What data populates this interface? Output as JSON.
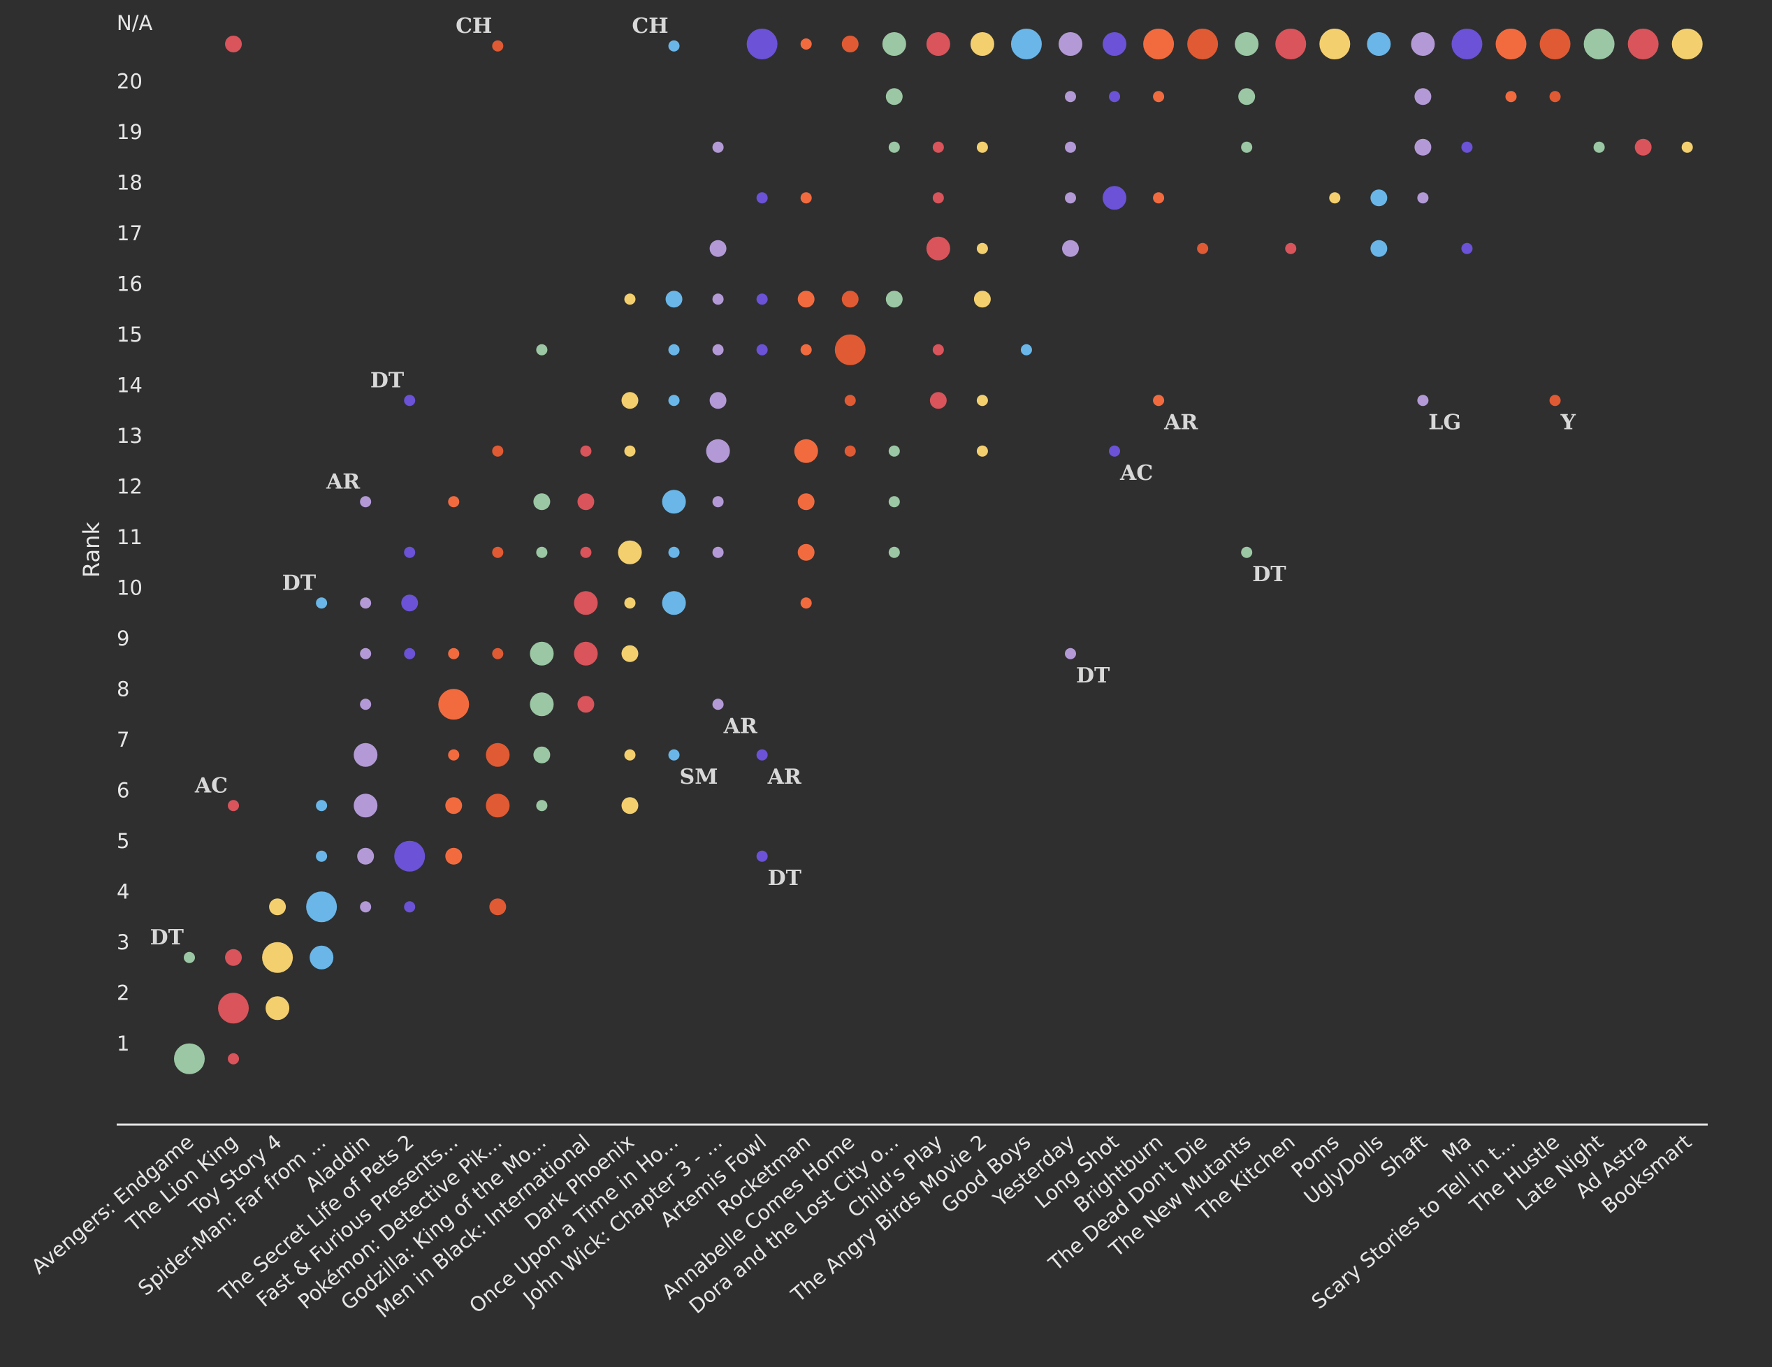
{
  "chart_data": {
    "type": "scatter",
    "ylabel": "Rank",
    "y_ticks": [
      "1",
      "2",
      "3",
      "4",
      "5",
      "6",
      "7",
      "8",
      "9",
      "10",
      "11",
      "12",
      "13",
      "14",
      "15",
      "16",
      "17",
      "18",
      "19",
      "20",
      "N/A"
    ],
    "categories": [
      "Avengers: Endgame",
      "The Lion King",
      "Toy Story 4",
      "Spider-Man: Far from ...",
      "Aladdin",
      "The Secret Life of Pets 2",
      "Fast & Furious Presents...",
      "Pokémon: Detective Pik...",
      "Godzilla: King of the Mo...",
      "Men in Black: International",
      "Dark Phoenix",
      "Once Upon a Time in Ho...",
      "John Wick: Chapter 3 - ...",
      "Artemis Fowl",
      "Rocketman",
      "Annabelle Comes Home",
      "Dora and the Lost City o...",
      "Child's Play",
      "The Angry Birds Movie 2",
      "Good Boys",
      "Yesterday",
      "Long Shot",
      "Brightburn",
      "The Dead Don't Die",
      "The New Mutants",
      "The Kitchen",
      "Poms",
      "UglyDolls",
      "Shaft",
      "Ma",
      "Scary Stories to Tell in t...",
      "The Hustle",
      "Late Night",
      "Ad Astra",
      "Booksmart"
    ],
    "palette": [
      "#9bc7a4",
      "#d9545b",
      "#f4cf6e",
      "#6ab6e8",
      "#b39ad6",
      "#6b52d6",
      "#f26b3f",
      "#e05a33"
    ],
    "size_scale": [
      1,
      2,
      3,
      4
    ],
    "points": [
      [
        0,
        0.7,
        4,
        0
      ],
      [
        0,
        2.7,
        1,
        0
      ],
      [
        1,
        0.7,
        1,
        1
      ],
      [
        1,
        1.7,
        4,
        1
      ],
      [
        1,
        2.7,
        2,
        1
      ],
      [
        1,
        5.7,
        1,
        1
      ],
      [
        1,
        21,
        2,
        1
      ],
      [
        2,
        1.7,
        3,
        2
      ],
      [
        2,
        2.7,
        4,
        2
      ],
      [
        2,
        3.7,
        2,
        2
      ],
      [
        3,
        2.7,
        3,
        3
      ],
      [
        3,
        3.7,
        4,
        3
      ],
      [
        3,
        4.7,
        1,
        3
      ],
      [
        3,
        5.7,
        1,
        3
      ],
      [
        3,
        9.7,
        1,
        3
      ],
      [
        4,
        3.7,
        1,
        4
      ],
      [
        4,
        4.7,
        2,
        4
      ],
      [
        4,
        5.7,
        3,
        4
      ],
      [
        4,
        6.7,
        3,
        4
      ],
      [
        4,
        7.7,
        1,
        4
      ],
      [
        4,
        8.7,
        1,
        4
      ],
      [
        4,
        9.7,
        1,
        4
      ],
      [
        4,
        11.7,
        1,
        4
      ],
      [
        5,
        3.7,
        1,
        5
      ],
      [
        5,
        4.7,
        4,
        5
      ],
      [
        5,
        8.7,
        1,
        5
      ],
      [
        5,
        9.7,
        2,
        5
      ],
      [
        5,
        10.7,
        1,
        5
      ],
      [
        5,
        13.7,
        1,
        5
      ],
      [
        6,
        4.7,
        2,
        6
      ],
      [
        6,
        5.7,
        2,
        6
      ],
      [
        6,
        6.7,
        1,
        6
      ],
      [
        6,
        7.7,
        4,
        6
      ],
      [
        6,
        8.7,
        1,
        6
      ],
      [
        6,
        11.7,
        1,
        6
      ],
      [
        7,
        3.7,
        2,
        7
      ],
      [
        7,
        5.7,
        3,
        7
      ],
      [
        7,
        6.7,
        3,
        7
      ],
      [
        7,
        8.7,
        1,
        7
      ],
      [
        7,
        10.7,
        1,
        7
      ],
      [
        7,
        12.7,
        1,
        7
      ],
      [
        7,
        20.7,
        1,
        7
      ],
      [
        8,
        5.7,
        1,
        0
      ],
      [
        8,
        6.7,
        2,
        0
      ],
      [
        8,
        7.7,
        3,
        0
      ],
      [
        8,
        8.7,
        3,
        0
      ],
      [
        8,
        10.7,
        1,
        0
      ],
      [
        8,
        11.7,
        2,
        0
      ],
      [
        8,
        14.7,
        1,
        0
      ],
      [
        9,
        7.7,
        2,
        1
      ],
      [
        9,
        8.7,
        3,
        1
      ],
      [
        9,
        9.7,
        3,
        1
      ],
      [
        9,
        10.7,
        1,
        1
      ],
      [
        9,
        11.7,
        2,
        1
      ],
      [
        9,
        12.7,
        1,
        1
      ],
      [
        10,
        5.7,
        2,
        2
      ],
      [
        10,
        6.7,
        1,
        2
      ],
      [
        10,
        8.7,
        2,
        2
      ],
      [
        10,
        9.7,
        1,
        2
      ],
      [
        10,
        10.7,
        3,
        2
      ],
      [
        10,
        12.7,
        1,
        2
      ],
      [
        10,
        13.7,
        2,
        2
      ],
      [
        10,
        15.7,
        1,
        2
      ],
      [
        11,
        6.7,
        1,
        3
      ],
      [
        11,
        9.7,
        3,
        3
      ],
      [
        11,
        10.7,
        1,
        3
      ],
      [
        11,
        11.7,
        3,
        3
      ],
      [
        11,
        13.7,
        1,
        3
      ],
      [
        11,
        14.7,
        1,
        3
      ],
      [
        11,
        15.7,
        2,
        3
      ],
      [
        11,
        20.7,
        1,
        3
      ],
      [
        12,
        7.7,
        1,
        4
      ],
      [
        12,
        10.7,
        1,
        4
      ],
      [
        12,
        11.7,
        1,
        4
      ],
      [
        12,
        12.7,
        3,
        4
      ],
      [
        12,
        13.7,
        2,
        4
      ],
      [
        12,
        14.7,
        1,
        4
      ],
      [
        12,
        15.7,
        1,
        4
      ],
      [
        12,
        16.7,
        2,
        4
      ],
      [
        12,
        18.7,
        1,
        4
      ],
      [
        13,
        4.7,
        1,
        5
      ],
      [
        13,
        6.7,
        1,
        5
      ],
      [
        13,
        14.7,
        1,
        5
      ],
      [
        13,
        15.7,
        1,
        5
      ],
      [
        13,
        17.7,
        1,
        5
      ],
      [
        13,
        21,
        4,
        5
      ],
      [
        14,
        9.7,
        1,
        6
      ],
      [
        14,
        10.7,
        2,
        6
      ],
      [
        14,
        11.7,
        2,
        6
      ],
      [
        14,
        12.7,
        3,
        6
      ],
      [
        14,
        14.7,
        1,
        6
      ],
      [
        14,
        15.7,
        2,
        6
      ],
      [
        14,
        17.7,
        1,
        6
      ],
      [
        14,
        21,
        1,
        6
      ],
      [
        15,
        12.7,
        1,
        7
      ],
      [
        15,
        13.7,
        1,
        7
      ],
      [
        15,
        14.7,
        4,
        7
      ],
      [
        15,
        15.7,
        2,
        7
      ],
      [
        15,
        21,
        2,
        7
      ],
      [
        16,
        10.7,
        1,
        0
      ],
      [
        16,
        11.7,
        1,
        0
      ],
      [
        16,
        12.7,
        1,
        0
      ],
      [
        16,
        15.7,
        2,
        0
      ],
      [
        16,
        18.7,
        1,
        0
      ],
      [
        16,
        19.7,
        2,
        0
      ],
      [
        16,
        21,
        3,
        0
      ],
      [
        17,
        13.7,
        2,
        1
      ],
      [
        17,
        14.7,
        1,
        1
      ],
      [
        17,
        16.7,
        3,
        1
      ],
      [
        17,
        17.7,
        1,
        1
      ],
      [
        17,
        18.7,
        1,
        1
      ],
      [
        17,
        21,
        3,
        1
      ],
      [
        18,
        12.7,
        1,
        2
      ],
      [
        18,
        13.7,
        1,
        2
      ],
      [
        18,
        15.7,
        2,
        2
      ],
      [
        18,
        16.7,
        1,
        2
      ],
      [
        18,
        18.7,
        1,
        2
      ],
      [
        18,
        21,
        3,
        2
      ],
      [
        19,
        14.7,
        1,
        3
      ],
      [
        19,
        21,
        4,
        3
      ],
      [
        20,
        8.7,
        1,
        4
      ],
      [
        20,
        16.7,
        2,
        4
      ],
      [
        20,
        17.7,
        1,
        4
      ],
      [
        20,
        18.7,
        1,
        4
      ],
      [
        20,
        19.7,
        1,
        4
      ],
      [
        20,
        21,
        3,
        4
      ],
      [
        21,
        12.7,
        1,
        5
      ],
      [
        21,
        17.7,
        3,
        5
      ],
      [
        21,
        19.7,
        1,
        5
      ],
      [
        21,
        21,
        3,
        5
      ],
      [
        22,
        13.7,
        1,
        6
      ],
      [
        22,
        17.7,
        1,
        6
      ],
      [
        22,
        19.7,
        1,
        6
      ],
      [
        22,
        21,
        4,
        6
      ],
      [
        23,
        16.7,
        1,
        7
      ],
      [
        23,
        21,
        4,
        7
      ],
      [
        24,
        10.7,
        1,
        0
      ],
      [
        24,
        18.7,
        1,
        0
      ],
      [
        24,
        19.7,
        2,
        0
      ],
      [
        24,
        21,
        3,
        0
      ],
      [
        25,
        16.7,
        1,
        1
      ],
      [
        25,
        21,
        4,
        1
      ],
      [
        26,
        17.7,
        1,
        2
      ],
      [
        26,
        21,
        4,
        2
      ],
      [
        27,
        16.7,
        2,
        3
      ],
      [
        27,
        17.7,
        2,
        3
      ],
      [
        27,
        21,
        3,
        3
      ],
      [
        28,
        13.7,
        1,
        4
      ],
      [
        28,
        17.7,
        1,
        4
      ],
      [
        28,
        18.7,
        2,
        4
      ],
      [
        28,
        19.7,
        2,
        4
      ],
      [
        28,
        21,
        3,
        4
      ],
      [
        29,
        16.7,
        1,
        5
      ],
      [
        29,
        18.7,
        1,
        5
      ],
      [
        29,
        21,
        4,
        5
      ],
      [
        30,
        19.7,
        1,
        6
      ],
      [
        30,
        21,
        4,
        6
      ],
      [
        31,
        13.7,
        1,
        7
      ],
      [
        31,
        19.7,
        1,
        7
      ],
      [
        31,
        21,
        4,
        7
      ],
      [
        32,
        18.7,
        1,
        0
      ],
      [
        32,
        21,
        4,
        0
      ],
      [
        33,
        18.7,
        2,
        1
      ],
      [
        33,
        21,
        4,
        1
      ],
      [
        34,
        18.7,
        1,
        2
      ],
      [
        34,
        21,
        4,
        2
      ]
    ],
    "annotations": [
      {
        "text": "DT",
        "x": 0,
        "y": 2.7,
        "pos": "above-left"
      },
      {
        "text": "AC",
        "x": 1,
        "y": 5.7,
        "pos": "above-left"
      },
      {
        "text": "DT",
        "x": 3,
        "y": 9.7,
        "pos": "above-left"
      },
      {
        "text": "AR",
        "x": 4,
        "y": 11.7,
        "pos": "above-left"
      },
      {
        "text": "DT",
        "x": 5,
        "y": 13.7,
        "pos": "above-left"
      },
      {
        "text": "CH",
        "x": 7,
        "y": 20.7,
        "pos": "above-left"
      },
      {
        "text": "CH",
        "x": 11,
        "y": 20.7,
        "pos": "above-left"
      },
      {
        "text": "SM",
        "x": 11,
        "y": 6.7,
        "pos": "below-right"
      },
      {
        "text": "AR",
        "x": 12,
        "y": 7.7,
        "pos": "below-right"
      },
      {
        "text": "AR",
        "x": 13,
        "y": 6.7,
        "pos": "below-right"
      },
      {
        "text": "DT",
        "x": 13,
        "y": 4.7,
        "pos": "below-right"
      },
      {
        "text": "DT",
        "x": 20,
        "y": 8.7,
        "pos": "below-right"
      },
      {
        "text": "AC",
        "x": 21,
        "y": 12.7,
        "pos": "below-right"
      },
      {
        "text": "AR",
        "x": 22,
        "y": 13.7,
        "pos": "below-right"
      },
      {
        "text": "DT",
        "x": 24,
        "y": 10.7,
        "pos": "below-right"
      },
      {
        "text": "LG",
        "x": 28,
        "y": 13.7,
        "pos": "below-right"
      },
      {
        "text": "Y",
        "x": 31,
        "y": 13.7,
        "pos": "below-right"
      }
    ],
    "ylim": [
      0,
      21
    ],
    "grid": false,
    "legend": "none"
  }
}
